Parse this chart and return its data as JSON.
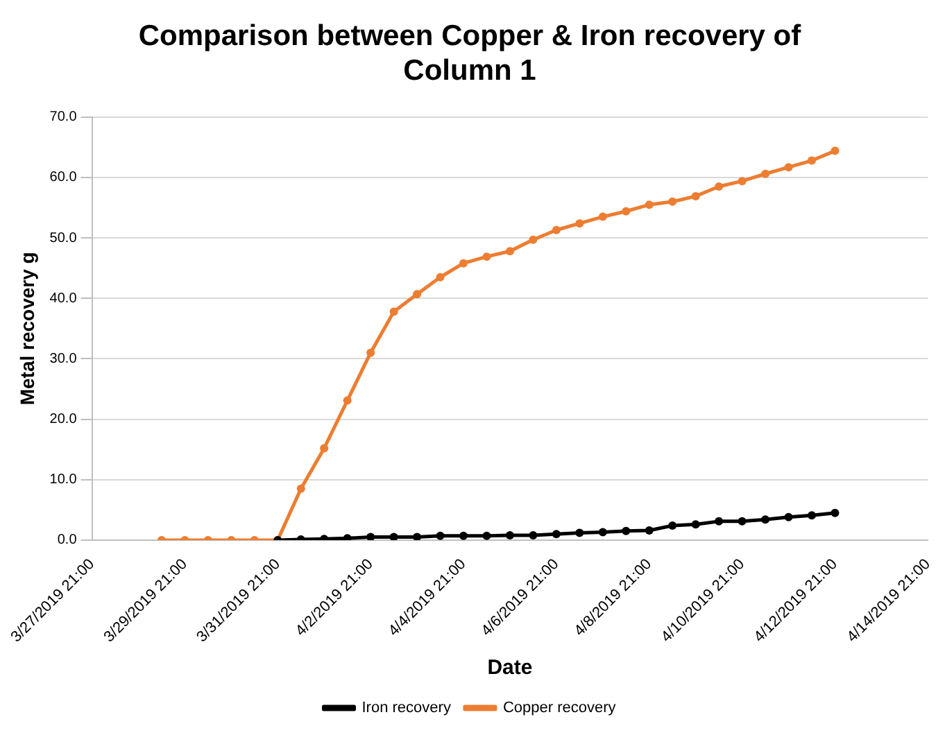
{
  "chart_data": {
    "type": "line",
    "title": [
      "Comparison between Copper & Iron recovery of",
      "Column 1"
    ],
    "xlabel": "Date",
    "ylabel": "Metal recovery g",
    "xlim": [
      "2019-03-27T21:00",
      "2019-04-14T21:00"
    ],
    "xticks": [
      {
        "value": "2019-03-27T21:00",
        "label": "3/27/2019 21:00"
      },
      {
        "value": "2019-03-29T21:00",
        "label": "3/29/2019 21:00"
      },
      {
        "value": "2019-03-31T21:00",
        "label": "3/31/2019 21:00"
      },
      {
        "value": "2019-04-02T21:00",
        "label": "4/2/2019 21:00"
      },
      {
        "value": "2019-04-04T21:00",
        "label": "4/4/2019 21:00"
      },
      {
        "value": "2019-04-06T21:00",
        "label": "4/6/2019 21:00"
      },
      {
        "value": "2019-04-08T21:00",
        "label": "4/8/2019 21:00"
      },
      {
        "value": "2019-04-10T21:00",
        "label": "4/10/2019 21:00"
      },
      {
        "value": "2019-04-12T21:00",
        "label": "4/12/2019 21:00"
      },
      {
        "value": "2019-04-14T21:00",
        "label": "4/14/2019 21:00"
      }
    ],
    "ylim": [
      0,
      70
    ],
    "yticks": [
      {
        "value": 0,
        "label": "0.0"
      },
      {
        "value": 10,
        "label": "10.0"
      },
      {
        "value": 20,
        "label": "20.0"
      },
      {
        "value": 30,
        "label": "30.0"
      },
      {
        "value": 40,
        "label": "40.0"
      },
      {
        "value": 50,
        "label": "50.0"
      },
      {
        "value": 60,
        "label": "60.0"
      },
      {
        "value": 70,
        "label": "70.0"
      }
    ],
    "grid": "y",
    "legend": "bottom",
    "marker": "circle",
    "line_style": "solid",
    "series": [
      {
        "name": "Iron recovery",
        "color": "#000000",
        "x": [
          "2019-03-31T21:00",
          "2019-04-01T09:00",
          "2019-04-01T21:00",
          "2019-04-02T09:00",
          "2019-04-02T21:00",
          "2019-04-03T09:00",
          "2019-04-03T21:00",
          "2019-04-04T09:00",
          "2019-04-04T21:00",
          "2019-04-05T09:00",
          "2019-04-05T21:00",
          "2019-04-06T09:00",
          "2019-04-06T21:00",
          "2019-04-07T09:00",
          "2019-04-07T21:00",
          "2019-04-08T09:00",
          "2019-04-08T21:00",
          "2019-04-09T09:00",
          "2019-04-09T21:00",
          "2019-04-10T09:00",
          "2019-04-10T21:00",
          "2019-04-11T09:00",
          "2019-04-11T21:00",
          "2019-04-12T09:00",
          "2019-04-12T21:00"
        ],
        "values": [
          0,
          0.1,
          0.2,
          0.3,
          0.5,
          0.5,
          0.5,
          0.7,
          0.7,
          0.7,
          0.8,
          0.8,
          1.0,
          1.2,
          1.3,
          1.5,
          1.6,
          2.4,
          2.6,
          3.1,
          3.1,
          3.4,
          3.8,
          4.1,
          4.5
        ]
      },
      {
        "name": "Copper recovery",
        "color": "#ed7d31",
        "x": [
          "2019-03-29T09:00",
          "2019-03-29T21:00",
          "2019-03-30T09:00",
          "2019-03-30T21:00",
          "2019-03-31T09:00",
          "2019-03-31T21:00",
          "2019-04-01T09:00",
          "2019-04-01T21:00",
          "2019-04-02T09:00",
          "2019-04-02T21:00",
          "2019-04-03T09:00",
          "2019-04-03T21:00",
          "2019-04-04T09:00",
          "2019-04-04T21:00",
          "2019-04-05T09:00",
          "2019-04-05T21:00",
          "2019-04-06T09:00",
          "2019-04-06T21:00",
          "2019-04-07T09:00",
          "2019-04-07T21:00",
          "2019-04-08T09:00",
          "2019-04-08T21:00",
          "2019-04-09T09:00",
          "2019-04-09T21:00",
          "2019-04-10T09:00",
          "2019-04-10T21:00",
          "2019-04-11T09:00",
          "2019-04-11T21:00",
          "2019-04-12T09:00",
          "2019-04-12T21:00"
        ],
        "values": [
          0,
          0,
          0,
          0,
          0,
          0,
          8.5,
          15.2,
          23.1,
          31.0,
          37.8,
          40.7,
          43.5,
          45.8,
          46.9,
          47.8,
          49.7,
          51.3,
          52.4,
          53.5,
          54.4,
          55.5,
          56.0,
          56.9,
          58.5,
          59.4,
          60.6,
          61.7,
          62.8,
          64.4
        ]
      }
    ]
  }
}
